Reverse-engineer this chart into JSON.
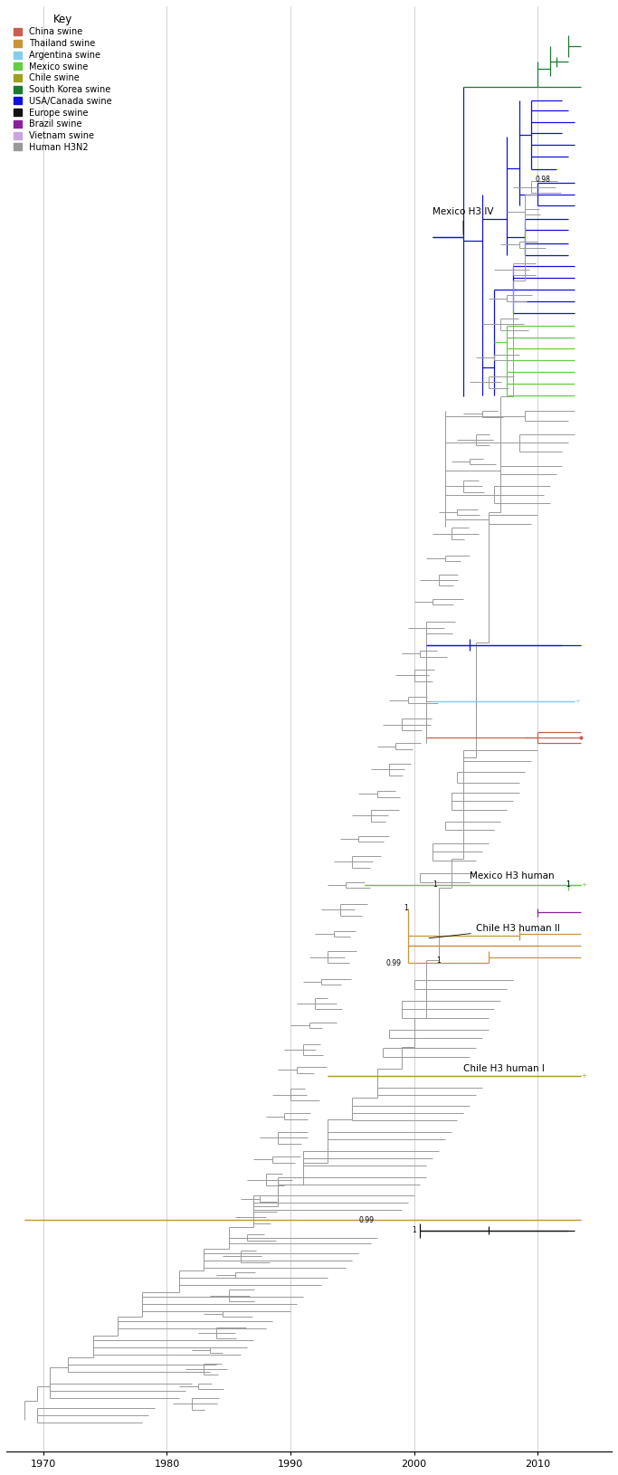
{
  "fig_width": 6.83,
  "fig_height": 16.3,
  "dpi": 100,
  "background_color": "#ffffff",
  "tree_color": "#999999",
  "x_min": 1967.0,
  "x_max": 2016.0,
  "y_min": 0,
  "y_max": 1000,
  "x_ticks": [
    1970,
    1980,
    1990,
    2000,
    2010
  ],
  "gridline_color": "#cccccc",
  "legend_entries": [
    {
      "label": "China swine",
      "color": "#c66050"
    },
    {
      "label": "Thailand swine",
      "color": "#c8943a"
    },
    {
      "label": "Argentina swine",
      "color": "#87ceeb"
    },
    {
      "label": "Mexico swine",
      "color": "#66cc44"
    },
    {
      "label": "Chile swine",
      "color": "#a0a020"
    },
    {
      "label": "South Korea swine",
      "color": "#1a7a30"
    },
    {
      "label": "USA/Canada swine",
      "color": "#1010dd"
    },
    {
      "label": "Europe swine",
      "color": "#111111"
    },
    {
      "label": "Brazil swine",
      "color": "#882299"
    },
    {
      "label": "Vietnam swine",
      "color": "#c8a8dc"
    },
    {
      "label": "Human H3N2",
      "color": "#999999"
    }
  ]
}
